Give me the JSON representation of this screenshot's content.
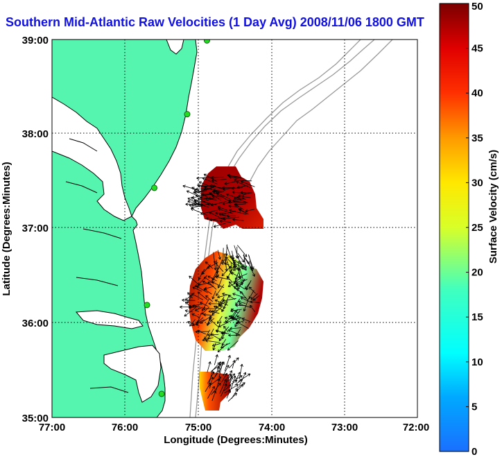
{
  "title": "Southern Mid-Atlantic Raw Velocities (1 Day Avg) 2008/11/06 1800 GMT",
  "map": {
    "x_label": "Longitude (Degrees:Minutes)",
    "y_label": "Latitude (Degrees:Minutes)",
    "x_ticks": [
      "77:00",
      "76:00",
      "75:00",
      "74:00",
      "73:00",
      "72:00"
    ],
    "y_ticks": [
      "39:00",
      "38:00",
      "37:00",
      "36:00",
      "35:00"
    ],
    "lon_range": [
      -77,
      -72
    ],
    "lat_range": [
      35,
      39
    ],
    "land_color": "#55f5b0",
    "grid": "dotted"
  },
  "colorbar": {
    "label": "Surface Velocity (cm/s)",
    "ticks": [
      "0",
      "5",
      "10",
      "15",
      "20",
      "25",
      "30",
      "35",
      "40",
      "45",
      "50"
    ],
    "range": [
      0,
      50
    ],
    "colormap": "jet"
  },
  "stations": [
    {
      "lon": -74.88,
      "lat": 38.99
    },
    {
      "lon": -75.15,
      "lat": 38.21
    },
    {
      "lon": -75.6,
      "lat": 37.43
    },
    {
      "lon": -75.7,
      "lat": 36.19
    },
    {
      "lon": -75.5,
      "lat": 35.25
    }
  ]
}
